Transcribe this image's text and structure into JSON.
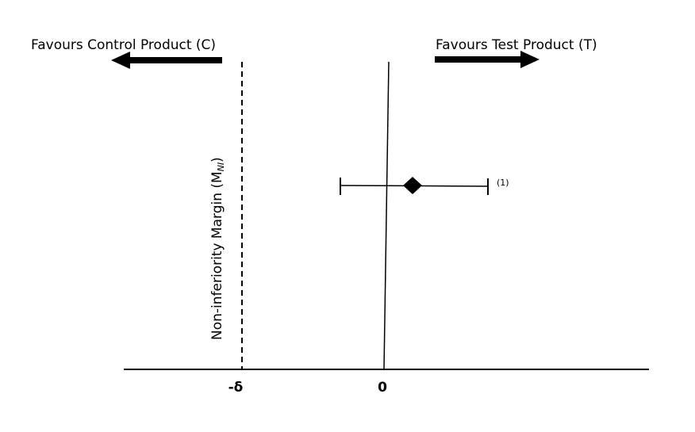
{
  "labels": {
    "left_arrow": "Favours Control Product (C)",
    "right_arrow": "Favours Test Product (T)"
  },
  "margin_label": {
    "main": "Non-inferiority Margin (M",
    "subscript": "NI",
    "close": ")"
  },
  "axis_labels": {
    "margin": "-δ",
    "zero": "0"
  },
  "annotation": "(1)"
}
